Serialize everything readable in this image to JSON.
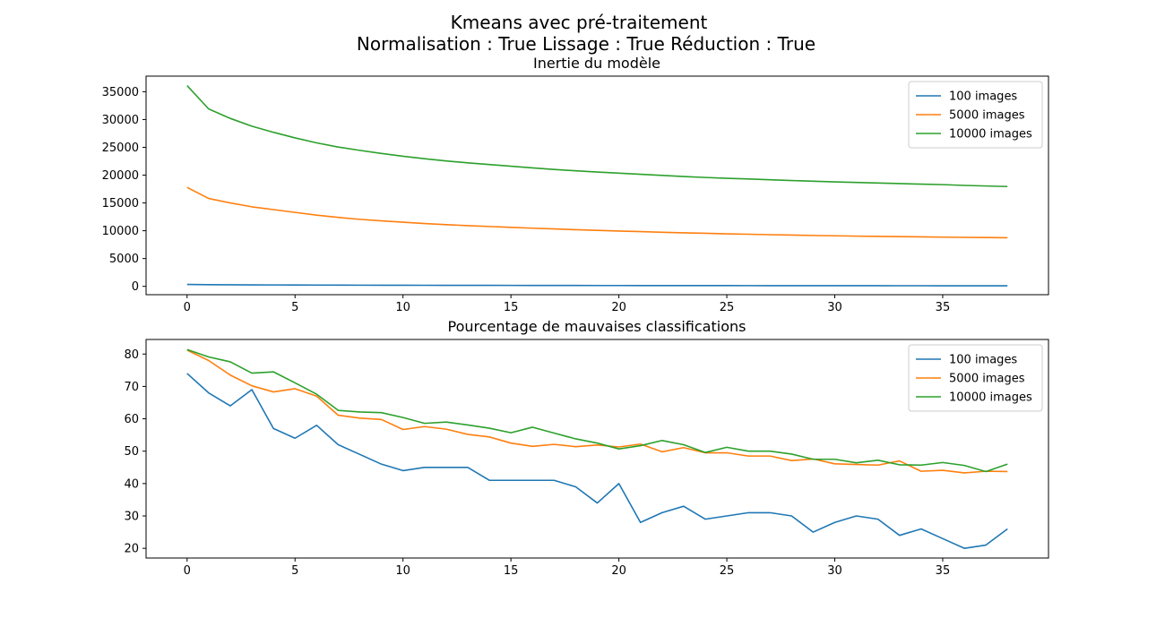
{
  "figure": {
    "suptitle_line1": "Kmeans avec pré-traitement",
    "suptitle_line2": "Normalisation : True Lissage : True Réduction : True"
  },
  "chart_data": [
    {
      "type": "line",
      "title": "Inertie du modèle",
      "xlabel": "",
      "ylabel": "",
      "xlim": [
        -1.9,
        39.9
      ],
      "ylim": [
        -1500,
        37800
      ],
      "xticks": [
        0,
        5,
        10,
        15,
        20,
        25,
        30,
        35
      ],
      "yticks": [
        0,
        5000,
        10000,
        15000,
        20000,
        25000,
        30000,
        35000
      ],
      "legend_position": "top-right",
      "grid": false,
      "x": [
        0,
        1,
        2,
        3,
        4,
        5,
        6,
        7,
        8,
        9,
        10,
        11,
        12,
        13,
        14,
        15,
        16,
        17,
        18,
        19,
        20,
        21,
        22,
        23,
        24,
        25,
        26,
        27,
        28,
        29,
        30,
        31,
        32,
        33,
        34,
        35,
        36,
        37,
        38
      ],
      "series": [
        {
          "name": "100 images",
          "color": "#1f77b4",
          "values": [
            340,
            300,
            280,
            265,
            250,
            240,
            230,
            220,
            212,
            205,
            198,
            192,
            186,
            180,
            175,
            170,
            165,
            161,
            157,
            153,
            149,
            146,
            142,
            139,
            136,
            133,
            130,
            127,
            124,
            122,
            119,
            117,
            114,
            112,
            110,
            108,
            106,
            104,
            102
          ]
        },
        {
          "name": "5000 images",
          "color": "#ff7f0e",
          "values": [
            17800,
            15800,
            15000,
            14300,
            13800,
            13300,
            12800,
            12400,
            12050,
            11780,
            11530,
            11300,
            11100,
            10920,
            10760,
            10610,
            10460,
            10320,
            10190,
            10070,
            9950,
            9840,
            9730,
            9630,
            9540,
            9450,
            9370,
            9290,
            9220,
            9150,
            9090,
            9030,
            8980,
            8940,
            8900,
            8850,
            8810,
            8780,
            8740
          ]
        },
        {
          "name": "10000 images",
          "color": "#2ca02c",
          "values": [
            36100,
            31900,
            30200,
            28800,
            27700,
            26700,
            25800,
            25050,
            24450,
            23900,
            23400,
            22950,
            22550,
            22200,
            21900,
            21600,
            21300,
            21020,
            20780,
            20550,
            20350,
            20150,
            19950,
            19750,
            19580,
            19430,
            19300,
            19160,
            19030,
            18910,
            18790,
            18680,
            18580,
            18480,
            18380,
            18290,
            18150,
            18050,
            17950
          ]
        }
      ]
    },
    {
      "type": "line",
      "title": "Pourcentage de mauvaises classifications",
      "xlabel": "",
      "ylabel": "",
      "xlim": [
        -1.9,
        39.9
      ],
      "ylim": [
        17,
        84.5
      ],
      "xticks": [
        0,
        5,
        10,
        15,
        20,
        25,
        30,
        35
      ],
      "yticks": [
        20,
        30,
        40,
        50,
        60,
        70,
        80
      ],
      "legend_position": "top-right",
      "grid": false,
      "x": [
        0,
        1,
        2,
        3,
        4,
        5,
        6,
        7,
        8,
        9,
        10,
        11,
        12,
        13,
        14,
        15,
        16,
        17,
        18,
        19,
        20,
        21,
        22,
        23,
        24,
        25,
        26,
        27,
        28,
        29,
        30,
        31,
        32,
        33,
        34,
        35,
        36,
        37,
        38
      ],
      "series": [
        {
          "name": "100 images",
          "color": "#1f77b4",
          "values": [
            74,
            68,
            64,
            69,
            57,
            54,
            58,
            52,
            49,
            46,
            44,
            45,
            45,
            45,
            41,
            41,
            41,
            41,
            39,
            34,
            40,
            28,
            31,
            33,
            29,
            30,
            31,
            31,
            30,
            25,
            28,
            30,
            29,
            24,
            26,
            23,
            20,
            21,
            26
          ]
        },
        {
          "name": "5000 images",
          "color": "#ff7f0e",
          "values": [
            81.2,
            78.0,
            73.5,
            70.2,
            68.3,
            69.3,
            67.0,
            61.1,
            60.2,
            59.8,
            56.7,
            57.6,
            56.8,
            55.2,
            54.4,
            52.5,
            51.5,
            52.1,
            51.4,
            51.9,
            51.3,
            52.2,
            49.8,
            51.1,
            49.5,
            49.5,
            48.5,
            48.5,
            47.1,
            47.6,
            46.1,
            45.9,
            45.7,
            47.0,
            43.8,
            44.1,
            43.3,
            43.8,
            43.7
          ]
        },
        {
          "name": "10000 images",
          "color": "#2ca02c",
          "values": [
            81.4,
            79.1,
            77.6,
            74.1,
            74.5,
            71.1,
            67.6,
            62.6,
            62.1,
            61.9,
            60.4,
            58.6,
            59.0,
            58.1,
            57.1,
            55.7,
            57.4,
            55.6,
            53.8,
            52.5,
            50.7,
            51.7,
            53.3,
            52.0,
            49.6,
            51.2,
            50.0,
            50.0,
            49.1,
            47.5,
            47.5,
            46.4,
            47.2,
            45.8,
            45.7,
            46.5,
            45.6,
            43.7,
            46.0
          ]
        }
      ]
    }
  ]
}
